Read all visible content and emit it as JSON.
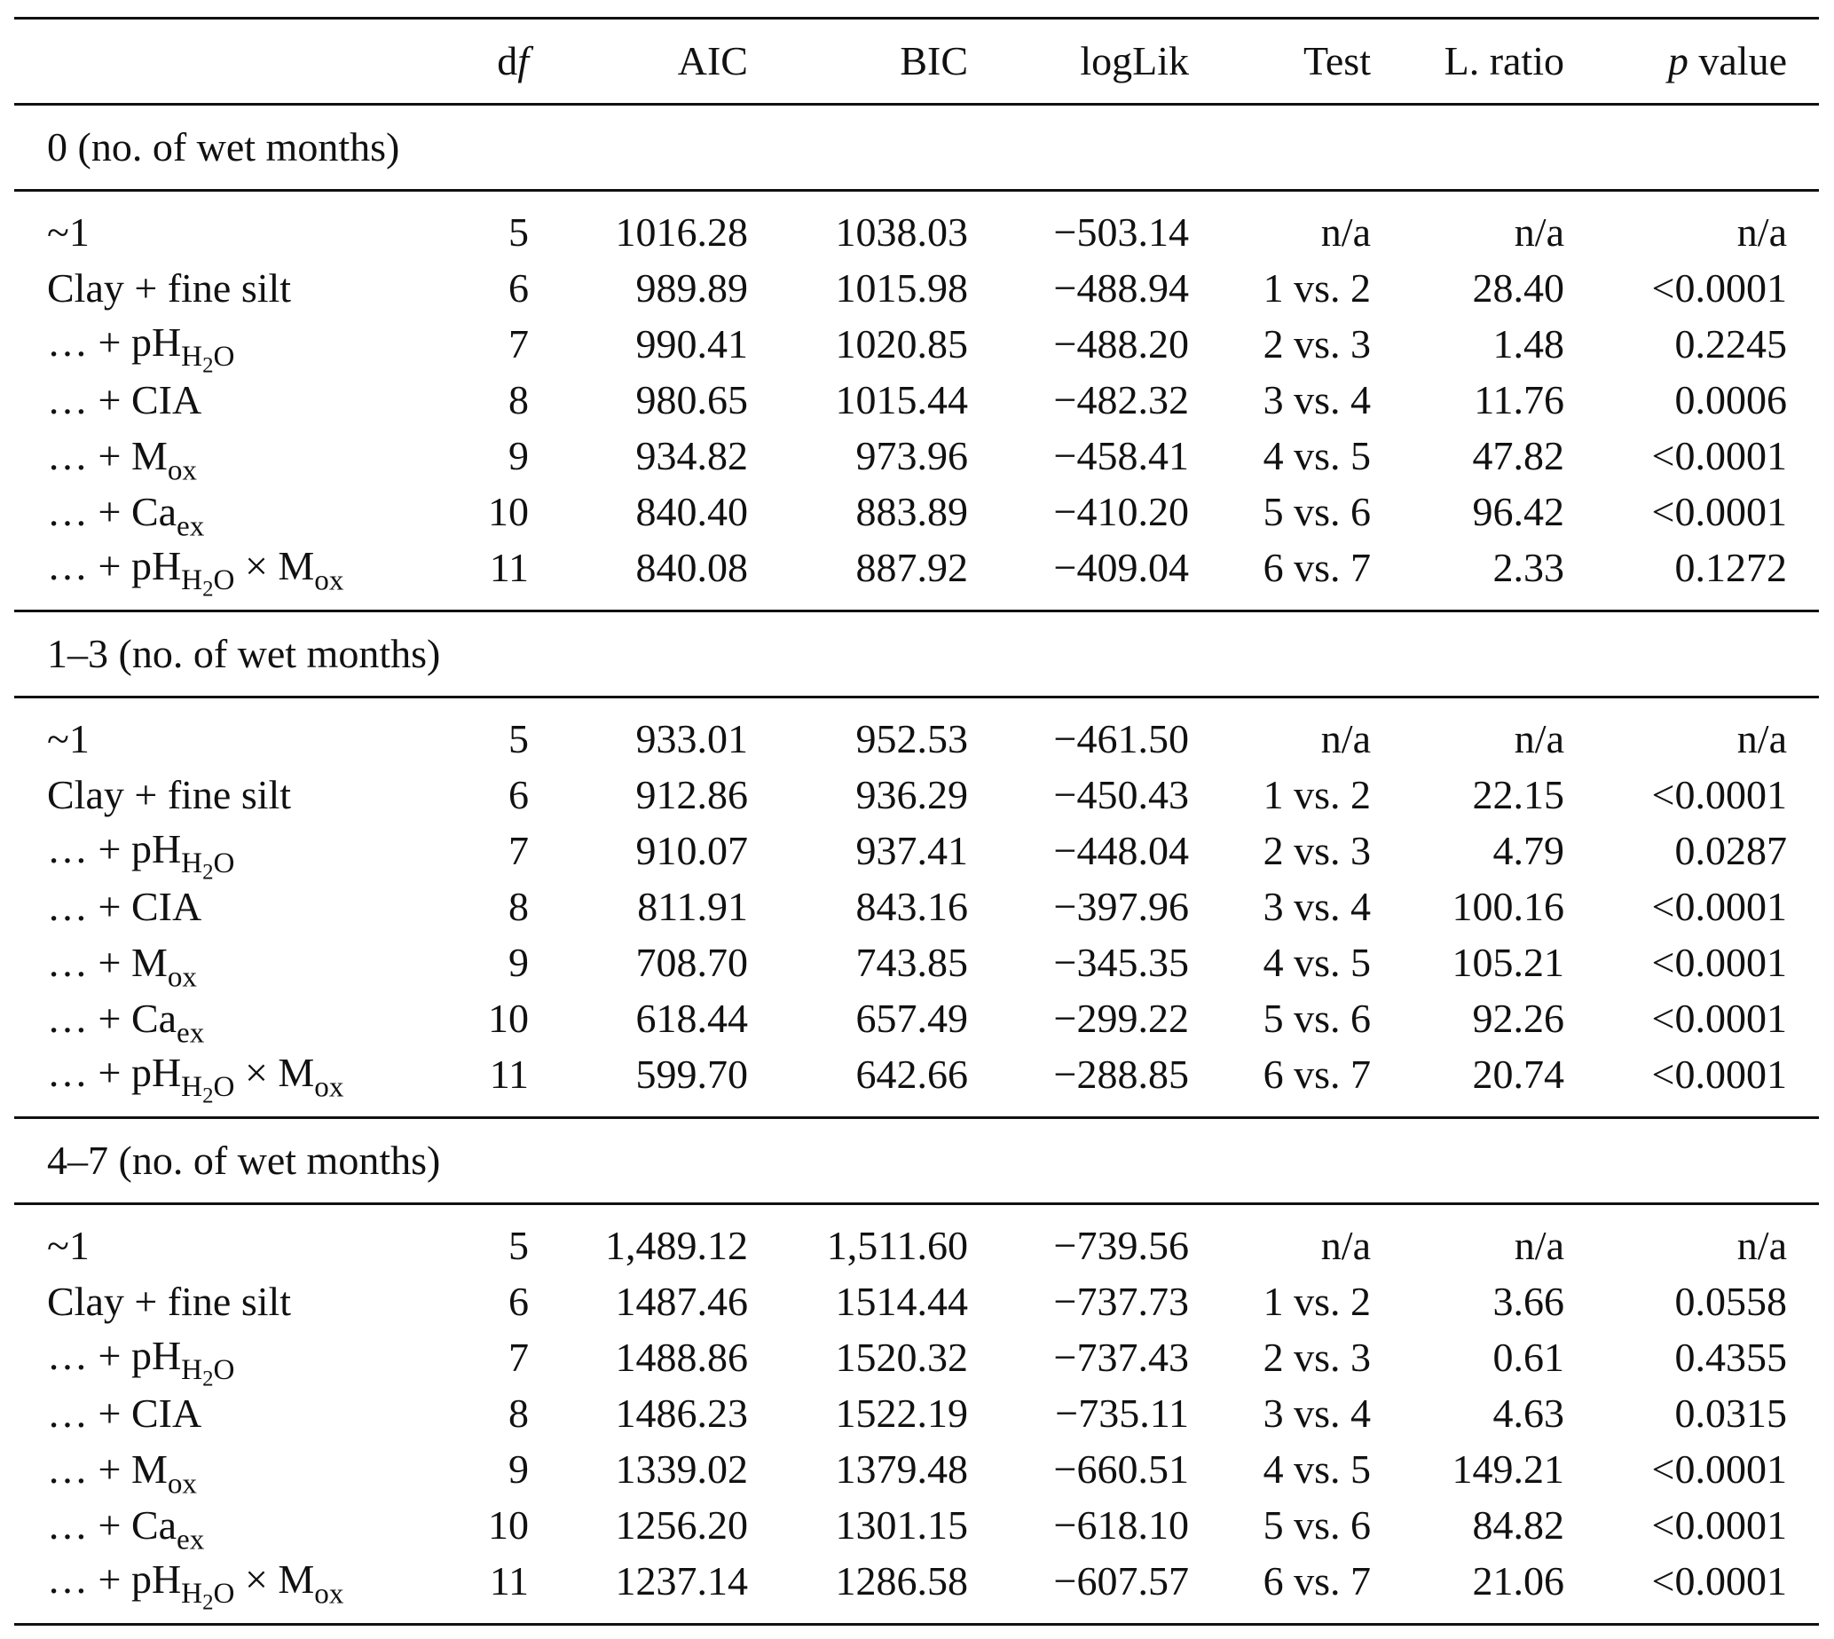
{
  "header": {
    "blank": "",
    "df": "d",
    "df_italic": "f",
    "aic": "AIC",
    "bic": "BIC",
    "loglik": "logLik",
    "test": "Test",
    "lratio": "L. ratio",
    "p_italic": "p",
    "p": " value"
  },
  "groups": [
    {
      "label": "0 (no. of wet months)",
      "rows": [
        {
          "model": "~1",
          "df": "5",
          "aic": "1016.28",
          "bic": "1038.03",
          "loglik": "−503.14",
          "test": "n/a",
          "lratio": "n/a",
          "p": "n/a"
        },
        {
          "model": "Clay + fine silt",
          "df": "6",
          "aic": "989.89",
          "bic": "1015.98",
          "loglik": "−488.94",
          "test": "1 vs. 2",
          "lratio": "28.40",
          "p": "<0.0001"
        },
        {
          "model": "… + pH_H2O",
          "df": "7",
          "aic": "990.41",
          "bic": "1020.85",
          "loglik": "−488.20",
          "test": "2 vs. 3",
          "lratio": "1.48",
          "p": "0.2245"
        },
        {
          "model": "… + CIA",
          "df": "8",
          "aic": "980.65",
          "bic": "1015.44",
          "loglik": "−482.32",
          "test": "3 vs. 4",
          "lratio": "11.76",
          "p": "0.0006"
        },
        {
          "model": "… + M_ox",
          "df": "9",
          "aic": "934.82",
          "bic": "973.96",
          "loglik": "−458.41",
          "test": "4 vs. 5",
          "lratio": "47.82",
          "p": "<0.0001"
        },
        {
          "model": "… + Ca_ex",
          "df": "10",
          "aic": "840.40",
          "bic": "883.89",
          "loglik": "−410.20",
          "test": "5 vs. 6",
          "lratio": "96.42",
          "p": "<0.0001"
        },
        {
          "model": "… + pH_H2O × M_ox",
          "df": "11",
          "aic": "840.08",
          "bic": "887.92",
          "loglik": "−409.04",
          "test": "6 vs. 7",
          "lratio": "2.33",
          "p": "0.1272"
        }
      ]
    },
    {
      "label": "1–3 (no. of wet months)",
      "rows": [
        {
          "model": "~1",
          "df": "5",
          "aic": "933.01",
          "bic": "952.53",
          "loglik": "−461.50",
          "test": "n/a",
          "lratio": "n/a",
          "p": "n/a"
        },
        {
          "model": "Clay + fine silt",
          "df": "6",
          "aic": "912.86",
          "bic": "936.29",
          "loglik": "−450.43",
          "test": "1 vs. 2",
          "lratio": "22.15",
          "p": "<0.0001"
        },
        {
          "model": "… + pH_H2O",
          "df": "7",
          "aic": "910.07",
          "bic": "937.41",
          "loglik": "−448.04",
          "test": "2 vs. 3",
          "lratio": "4.79",
          "p": "0.0287"
        },
        {
          "model": "… + CIA",
          "df": "8",
          "aic": "811.91",
          "bic": "843.16",
          "loglik": "−397.96",
          "test": "3 vs. 4",
          "lratio": "100.16",
          "p": "<0.0001"
        },
        {
          "model": "… + M_ox",
          "df": "9",
          "aic": "708.70",
          "bic": "743.85",
          "loglik": "−345.35",
          "test": "4 vs. 5",
          "lratio": "105.21",
          "p": "<0.0001"
        },
        {
          "model": "… + Ca_ex",
          "df": "10",
          "aic": "618.44",
          "bic": "657.49",
          "loglik": "−299.22",
          "test": "5 vs. 6",
          "lratio": "92.26",
          "p": "<0.0001"
        },
        {
          "model": "… + pH_H2O × M_ox",
          "df": "11",
          "aic": "599.70",
          "bic": "642.66",
          "loglik": "−288.85",
          "test": "6 vs. 7",
          "lratio": "20.74",
          "p": "<0.0001"
        }
      ]
    },
    {
      "label": "4–7 (no. of wet months)",
      "rows": [
        {
          "model": "~1",
          "df": "5",
          "aic": "1,489.12",
          "bic": "1,511.60",
          "loglik": "−739.56",
          "test": "n/a",
          "lratio": "n/a",
          "p": "n/a"
        },
        {
          "model": "Clay + fine silt",
          "df": "6",
          "aic": "1487.46",
          "bic": "1514.44",
          "loglik": "−737.73",
          "test": "1 vs. 2",
          "lratio": "3.66",
          "p": "0.0558"
        },
        {
          "model": "… + pH_H2O",
          "df": "7",
          "aic": "1488.86",
          "bic": "1520.32",
          "loglik": "−737.43",
          "test": "2 vs. 3",
          "lratio": "0.61",
          "p": "0.4355"
        },
        {
          "model": "… + CIA",
          "df": "8",
          "aic": "1486.23",
          "bic": "1522.19",
          "loglik": "−735.11",
          "test": "3 vs. 4",
          "lratio": "4.63",
          "p": "0.0315"
        },
        {
          "model": "… + M_ox",
          "df": "9",
          "aic": "1339.02",
          "bic": "1379.48",
          "loglik": "−660.51",
          "test": "4 vs. 5",
          "lratio": "149.21",
          "p": "<0.0001"
        },
        {
          "model": "… + Ca_ex",
          "df": "10",
          "aic": "1256.20",
          "bic": "1301.15",
          "loglik": "−618.10",
          "test": "5 vs. 6",
          "lratio": "84.82",
          "p": "<0.0001"
        },
        {
          "model": "… + pH_H2O × M_ox",
          "df": "11",
          "aic": "1237.14",
          "bic": "1286.58",
          "loglik": "−607.57",
          "test": "6 vs. 7",
          "lratio": "21.06",
          "p": "<0.0001"
        }
      ]
    }
  ]
}
